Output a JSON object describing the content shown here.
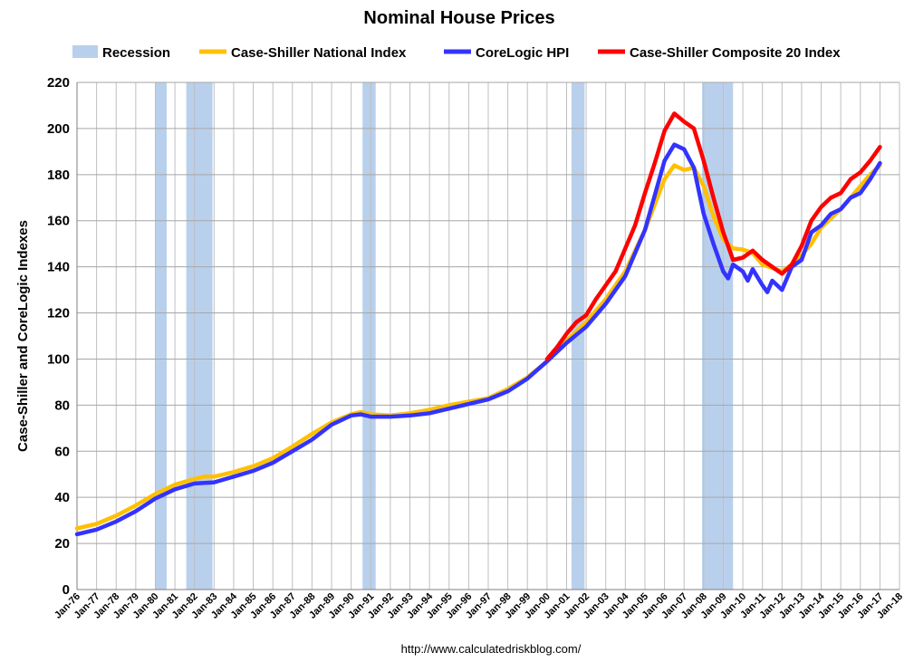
{
  "chart_data": {
    "type": "line",
    "title": "Nominal House Prices",
    "ylabel": "Case-Shiller and CoreLogic Indexes",
    "xlabel": "",
    "source": "http://www.calculatedriskblog.com/",
    "ylim": [
      0,
      220
    ],
    "yticks": [
      0,
      20,
      40,
      60,
      80,
      100,
      120,
      140,
      160,
      180,
      200,
      220
    ],
    "xlim": [
      1976,
      2018
    ],
    "xtick_labels": [
      "Jan-76",
      "Jan-77",
      "Jan-78",
      "Jan-79",
      "Jan-80",
      "Jan-81",
      "Jan-82",
      "Jan-83",
      "Jan-84",
      "Jan-85",
      "Jan-86",
      "Jan-87",
      "Jan-88",
      "Jan-89",
      "Jan-90",
      "Jan-91",
      "Jan-92",
      "Jan-93",
      "Jan-94",
      "Jan-95",
      "Jan-96",
      "Jan-97",
      "Jan-98",
      "Jan-99",
      "Jan-00",
      "Jan-01",
      "Jan-02",
      "Jan-03",
      "Jan-04",
      "Jan-05",
      "Jan-06",
      "Jan-07",
      "Jan-08",
      "Jan-09",
      "Jan-10",
      "Jan-11",
      "Jan-12",
      "Jan-13",
      "Jan-14",
      "Jan-15",
      "Jan-16",
      "Jan-17",
      "Jan-18"
    ],
    "recession": {
      "name": "Recession",
      "color": "#b9d0ec",
      "periods": [
        [
          1980.0,
          1980.58
        ],
        [
          1981.58,
          1982.92
        ],
        [
          1990.58,
          1991.25
        ],
        [
          2001.25,
          2001.92
        ],
        [
          2007.92,
          2009.5
        ]
      ]
    },
    "series": [
      {
        "name": "Case-Shiller National Index",
        "color": "#ffc000",
        "points": [
          [
            1976.0,
            26.5
          ],
          [
            1977.0,
            28.5
          ],
          [
            1978.0,
            32.0
          ],
          [
            1979.0,
            36.5
          ],
          [
            1980.0,
            41.5
          ],
          [
            1981.0,
            45.5
          ],
          [
            1982.0,
            48.0
          ],
          [
            1982.5,
            49.0
          ],
          [
            1983.0,
            49.0
          ],
          [
            1984.0,
            51.0
          ],
          [
            1985.0,
            53.5
          ],
          [
            1986.0,
            57.0
          ],
          [
            1987.0,
            62.0
          ],
          [
            1988.0,
            67.5
          ],
          [
            1989.0,
            72.5
          ],
          [
            1990.0,
            76.0
          ],
          [
            1990.5,
            77.0
          ],
          [
            1991.0,
            76.0
          ],
          [
            1992.0,
            75.5
          ],
          [
            1993.0,
            76.5
          ],
          [
            1994.0,
            78.0
          ],
          [
            1995.0,
            80.0
          ],
          [
            1996.0,
            81.5
          ],
          [
            1997.0,
            83.0
          ],
          [
            1998.0,
            87.0
          ],
          [
            1999.0,
            92.0
          ],
          [
            2000.0,
            99.0
          ],
          [
            2001.0,
            108.0
          ],
          [
            2002.0,
            116.0
          ],
          [
            2003.0,
            126.0
          ],
          [
            2004.0,
            138.0
          ],
          [
            2005.0,
            156.0
          ],
          [
            2005.5,
            167.0
          ],
          [
            2006.0,
            178.0
          ],
          [
            2006.5,
            184.0
          ],
          [
            2007.0,
            182.0
          ],
          [
            2007.5,
            183.0
          ],
          [
            2008.0,
            175.0
          ],
          [
            2008.5,
            162.0
          ],
          [
            2009.0,
            152.0
          ],
          [
            2009.5,
            148.0
          ],
          [
            2010.0,
            147.5
          ],
          [
            2010.5,
            146.0
          ],
          [
            2011.0,
            141.0
          ],
          [
            2011.5,
            139.5
          ],
          [
            2012.0,
            138.0
          ],
          [
            2012.5,
            141.0
          ],
          [
            2013.0,
            145.0
          ],
          [
            2013.5,
            150.0
          ],
          [
            2014.0,
            157.0
          ],
          [
            2014.5,
            161.0
          ],
          [
            2015.0,
            165.0
          ],
          [
            2015.5,
            170.0
          ],
          [
            2016.0,
            175.0
          ],
          [
            2016.5,
            180.0
          ],
          [
            2017.0,
            184.0
          ]
        ]
      },
      {
        "name": "CoreLogic HPI",
        "color": "#3333ff",
        "points": [
          [
            1976.0,
            24.0
          ],
          [
            1977.0,
            26.0
          ],
          [
            1978.0,
            29.5
          ],
          [
            1979.0,
            34.0
          ],
          [
            1980.0,
            39.5
          ],
          [
            1981.0,
            43.5
          ],
          [
            1982.0,
            46.0
          ],
          [
            1983.0,
            46.5
          ],
          [
            1984.0,
            49.0
          ],
          [
            1985.0,
            51.5
          ],
          [
            1986.0,
            55.0
          ],
          [
            1987.0,
            60.0
          ],
          [
            1988.0,
            65.0
          ],
          [
            1989.0,
            71.5
          ],
          [
            1990.0,
            75.5
          ],
          [
            1990.5,
            76.0
          ],
          [
            1991.0,
            75.0
          ],
          [
            1992.0,
            75.0
          ],
          [
            1993.0,
            75.5
          ],
          [
            1994.0,
            76.5
          ],
          [
            1995.0,
            78.5
          ],
          [
            1996.0,
            80.5
          ],
          [
            1997.0,
            82.5
          ],
          [
            1998.0,
            86.0
          ],
          [
            1999.0,
            91.5
          ],
          [
            2000.0,
            99.0
          ],
          [
            2001.0,
            107.0
          ],
          [
            2002.0,
            114.0
          ],
          [
            2003.0,
            124.0
          ],
          [
            2004.0,
            136.0
          ],
          [
            2005.0,
            156.0
          ],
          [
            2005.5,
            171.0
          ],
          [
            2006.0,
            186.0
          ],
          [
            2006.5,
            193.0
          ],
          [
            2007.0,
            191.0
          ],
          [
            2007.5,
            183.0
          ],
          [
            2008.0,
            163.0
          ],
          [
            2008.5,
            150.0
          ],
          [
            2009.0,
            138.0
          ],
          [
            2009.25,
            135.0
          ],
          [
            2009.5,
            141.0
          ],
          [
            2010.0,
            138.0
          ],
          [
            2010.25,
            134.0
          ],
          [
            2010.5,
            139.0
          ],
          [
            2011.0,
            132.0
          ],
          [
            2011.25,
            129.0
          ],
          [
            2011.5,
            134.0
          ],
          [
            2012.0,
            130.0
          ],
          [
            2012.5,
            140.0
          ],
          [
            2013.0,
            143.0
          ],
          [
            2013.5,
            155.0
          ],
          [
            2014.0,
            158.0
          ],
          [
            2014.5,
            163.0
          ],
          [
            2015.0,
            165.0
          ],
          [
            2015.5,
            170.0
          ],
          [
            2016.0,
            172.0
          ],
          [
            2016.5,
            178.0
          ],
          [
            2017.0,
            185.0
          ]
        ]
      },
      {
        "name": "Case-Shiller Composite 20 Index",
        "color": "#ff0000",
        "points": [
          [
            2000.0,
            100.0
          ],
          [
            2000.5,
            105.0
          ],
          [
            2001.0,
            111.0
          ],
          [
            2001.5,
            116.0
          ],
          [
            2002.0,
            119.0
          ],
          [
            2002.5,
            126.0
          ],
          [
            2003.0,
            132.0
          ],
          [
            2003.5,
            138.0
          ],
          [
            2004.0,
            148.0
          ],
          [
            2004.5,
            158.0
          ],
          [
            2005.0,
            172.0
          ],
          [
            2005.5,
            185.0
          ],
          [
            2006.0,
            199.0
          ],
          [
            2006.5,
            206.5
          ],
          [
            2007.0,
            203.0
          ],
          [
            2007.5,
            200.0
          ],
          [
            2008.0,
            186.0
          ],
          [
            2008.5,
            170.0
          ],
          [
            2009.0,
            155.0
          ],
          [
            2009.5,
            143.0
          ],
          [
            2010.0,
            144.0
          ],
          [
            2010.5,
            147.0
          ],
          [
            2011.0,
            143.0
          ],
          [
            2011.5,
            140.0
          ],
          [
            2012.0,
            137.0
          ],
          [
            2012.5,
            141.0
          ],
          [
            2013.0,
            149.0
          ],
          [
            2013.5,
            160.0
          ],
          [
            2014.0,
            166.0
          ],
          [
            2014.5,
            170.0
          ],
          [
            2015.0,
            172.0
          ],
          [
            2015.5,
            178.0
          ],
          [
            2016.0,
            181.0
          ],
          [
            2016.5,
            186.0
          ],
          [
            2017.0,
            192.0
          ]
        ]
      }
    ],
    "legend_position": "top"
  }
}
